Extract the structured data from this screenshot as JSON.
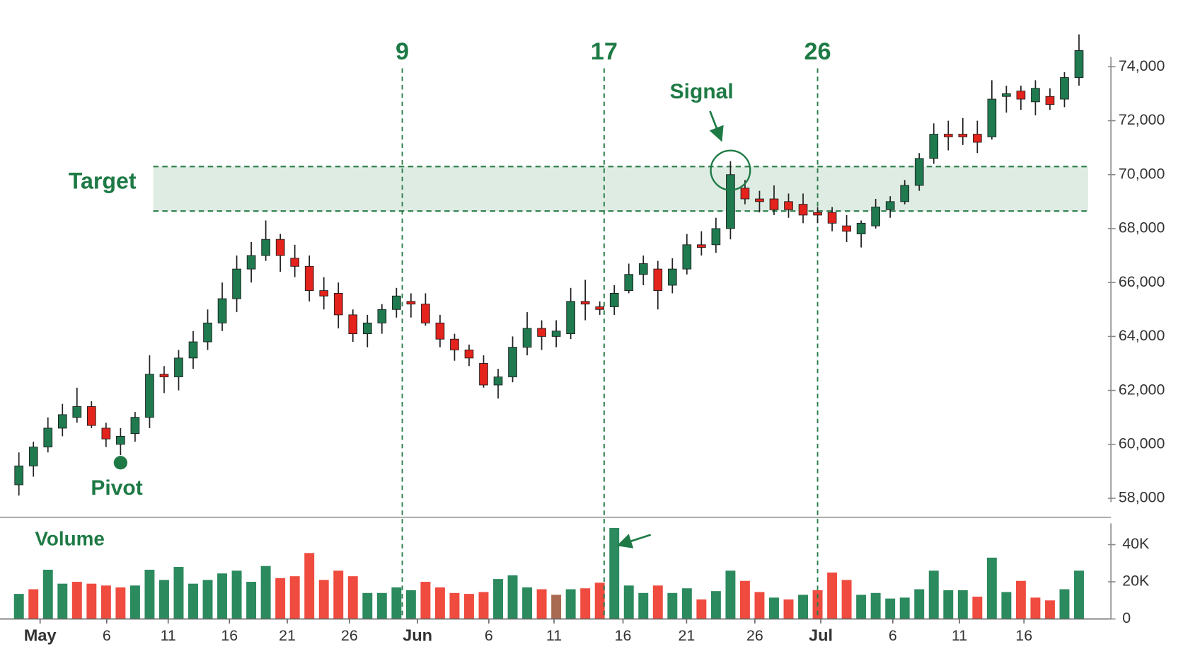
{
  "chart_data": [
    {
      "type": "candlestick",
      "x": [
        0,
        1,
        2,
        3,
        4,
        5,
        6,
        7,
        8,
        9,
        10,
        11,
        12,
        13,
        14,
        15,
        16,
        17,
        18,
        19,
        20,
        21,
        22,
        23,
        24,
        25,
        26,
        27,
        28,
        29,
        30,
        31,
        32,
        33,
        34,
        35,
        36,
        37,
        38,
        39,
        40,
        41,
        42,
        43,
        44,
        45,
        46,
        47,
        48,
        49,
        50,
        51,
        52,
        53,
        54,
        55,
        56,
        57,
        58,
        59,
        60,
        61,
        62,
        63,
        64,
        65,
        66,
        67,
        68,
        69,
        70,
        71,
        72,
        73
      ],
      "open": [
        58500,
        59200,
        59900,
        60600,
        61000,
        61400,
        60600,
        60000,
        60400,
        61000,
        62600,
        62500,
        63200,
        63800,
        64500,
        65400,
        66500,
        67000,
        67600,
        66900,
        66600,
        65700,
        65600,
        64800,
        64100,
        64500,
        65000,
        65300,
        65200,
        64500,
        63900,
        63500,
        63000,
        62200,
        62500,
        63600,
        64300,
        64000,
        64100,
        65300,
        65100,
        65100,
        65700,
        66300,
        66500,
        65900,
        66500,
        67400,
        67400,
        68000,
        69500,
        69100,
        69100,
        69000,
        68900,
        68600,
        68600,
        68100,
        67800,
        68100,
        68700,
        69000,
        69600,
        70600,
        71500,
        71500,
        71500,
        71400,
        72900,
        73100,
        72700,
        72900,
        72800,
        73600
      ],
      "high": [
        59700,
        60100,
        61000,
        61500,
        62100,
        61600,
        60800,
        60600,
        61200,
        63300,
        62900,
        63500,
        64200,
        65000,
        66000,
        67000,
        67500,
        68300,
        67800,
        67400,
        67000,
        66200,
        66000,
        65000,
        64800,
        65200,
        65800,
        65600,
        65600,
        64800,
        64100,
        63700,
        63300,
        62800,
        64000,
        64900,
        64600,
        64600,
        65800,
        66100,
        65300,
        65900,
        66700,
        67000,
        66800,
        66900,
        67800,
        67900,
        68400,
        70500,
        69800,
        69400,
        69600,
        69300,
        69300,
        68800,
        68800,
        68500,
        68300,
        69100,
        69200,
        69800,
        70800,
        71900,
        72000,
        72100,
        72000,
        73500,
        73300,
        73300,
        73500,
        73200,
        73800,
        75200
      ],
      "low": [
        58100,
        58800,
        59700,
        60300,
        60800,
        60600,
        59900,
        59600,
        60100,
        60600,
        61900,
        62000,
        62800,
        63500,
        64200,
        64900,
        66000,
        66800,
        66400,
        66200,
        65300,
        65000,
        64300,
        63800,
        63600,
        64100,
        64700,
        64700,
        64400,
        63600,
        63100,
        62900,
        62100,
        61700,
        62300,
        63300,
        63500,
        63600,
        63900,
        64600,
        64800,
        64800,
        65600,
        65900,
        65000,
        65600,
        66300,
        67000,
        67100,
        67600,
        68900,
        68600,
        68500,
        68400,
        68200,
        68200,
        67900,
        67500,
        67300,
        68000,
        68400,
        68900,
        69400,
        70400,
        70900,
        71100,
        70800,
        71300,
        72300,
        72400,
        72200,
        72400,
        72500,
        73300
      ],
      "close": [
        59200,
        59900,
        60600,
        61100,
        61400,
        60700,
        60200,
        60300,
        61000,
        62600,
        62500,
        63200,
        63800,
        64500,
        65400,
        66500,
        67000,
        67600,
        67000,
        66600,
        65700,
        65500,
        64800,
        64100,
        64500,
        65000,
        65500,
        65200,
        64500,
        63900,
        63500,
        63200,
        62200,
        62500,
        63600,
        64300,
        64000,
        64200,
        65300,
        65200,
        65000,
        65600,
        66300,
        66700,
        65700,
        66500,
        67400,
        67300,
        68000,
        70000,
        69100,
        69000,
        68700,
        68700,
        68500,
        68500,
        68200,
        67900,
        68200,
        68800,
        69000,
        69600,
        70600,
        71500,
        71400,
        71400,
        71200,
        72800,
        73000,
        72800,
        73200,
        72600,
        73600,
        74600
      ],
      "up_color": "#1f7a4f",
      "down_color": "#e3231c",
      "xlim": [
        -1.3,
        75.2
      ],
      "ylim": [
        57350,
        75350
      ],
      "yticks": [
        {
          "value": 58000,
          "label": "58,000"
        },
        {
          "value": 60000,
          "label": "60,000"
        },
        {
          "value": 62000,
          "label": "62,000"
        },
        {
          "value": 64000,
          "label": "64,000"
        },
        {
          "value": 66000,
          "label": "66,000"
        },
        {
          "value": 68000,
          "label": "68,000"
        },
        {
          "value": 70000,
          "label": "70,000"
        },
        {
          "value": 72000,
          "label": "72,000"
        },
        {
          "value": 74000,
          "label": "74,000"
        }
      ],
      "target_zone": {
        "label": "Target",
        "range": [
          68650,
          70300
        ],
        "color": "#2a7d4a"
      },
      "vlines": [
        {
          "x": 26.4,
          "label": "9"
        },
        {
          "x": 40.3,
          "label": "17"
        },
        {
          "x": 55.0,
          "label": "26"
        }
      ],
      "annotations": {
        "pivot": "Pivot",
        "signal": "Signal"
      }
    },
    {
      "type": "bar",
      "title": "Volume",
      "x": [
        0,
        1,
        2,
        3,
        4,
        5,
        6,
        7,
        8,
        9,
        10,
        11,
        12,
        13,
        14,
        15,
        16,
        17,
        18,
        19,
        20,
        21,
        22,
        23,
        24,
        25,
        26,
        27,
        28,
        29,
        30,
        31,
        32,
        33,
        34,
        35,
        36,
        37,
        38,
        39,
        40,
        41,
        42,
        43,
        44,
        45,
        46,
        47,
        48,
        49,
        50,
        51,
        52,
        53,
        54,
        55,
        56,
        57,
        58,
        59,
        60,
        61,
        62,
        63,
        64,
        65,
        66,
        67,
        68,
        69,
        70,
        71,
        72,
        73
      ],
      "values": [
        13500,
        16000,
        26500,
        19000,
        20000,
        19000,
        18000,
        17000,
        18000,
        26500,
        21000,
        28000,
        19000,
        21000,
        24500,
        26000,
        20000,
        28500,
        22000,
        23000,
        35500,
        21000,
        26000,
        23000,
        14000,
        14000,
        17000,
        15500,
        20000,
        17000,
        14000,
        13500,
        14500,
        21500,
        23500,
        17000,
        16000,
        13000,
        16000,
        16500,
        19500,
        49000,
        18000,
        14000,
        18000,
        14000,
        16500,
        10500,
        15000,
        26000,
        20500,
        14500,
        11500,
        10500,
        13000,
        15500,
        25000,
        21000,
        13000,
        14000,
        11000,
        11500,
        16000,
        26000,
        15500,
        15500,
        12000,
        33000,
        14500,
        20500,
        11500,
        10000,
        16000,
        26000
      ],
      "colors": [
        "#2b8a5e",
        "#ef4b3f",
        "#2b8a5e",
        "#2b8a5e",
        "#ef4b3f",
        "#ef4b3f",
        "#ef4b3f",
        "#ef4b3f",
        "#2b8a5e",
        "#2b8a5e",
        "#2b8a5e",
        "#2b8a5e",
        "#2b8a5e",
        "#2b8a5e",
        "#2b8a5e",
        "#2b8a5e",
        "#2b8a5e",
        "#2b8a5e",
        "#ef4b3f",
        "#ef4b3f",
        "#ef4b3f",
        "#ef4b3f",
        "#ef4b3f",
        "#ef4b3f",
        "#2b8a5e",
        "#2b8a5e",
        "#2b8a5e",
        "#2b8a5e",
        "#ef4b3f",
        "#ef4b3f",
        "#ef4b3f",
        "#ef4b3f",
        "#ef4b3f",
        "#2b8a5e",
        "#2b8a5e",
        "#2b8a5e",
        "#ef4b3f",
        "#a86a50",
        "#2b8a5e",
        "#ef4b3f",
        "#ef4b3f",
        "#2b8a5e",
        "#2b8a5e",
        "#2b8a5e",
        "#ef4b3f",
        "#2b8a5e",
        "#2b8a5e",
        "#ef4b3f",
        "#2b8a5e",
        "#2b8a5e",
        "#ef4b3f",
        "#ef4b3f",
        "#2b8a5e",
        "#ef4b3f",
        "#2b8a5e",
        "#ef4b3f",
        "#ef4b3f",
        "#ef4b3f",
        "#2b8a5e",
        "#2b8a5e",
        "#2b8a5e",
        "#2b8a5e",
        "#2b8a5e",
        "#2b8a5e",
        "#2b8a5e",
        "#2b8a5e",
        "#ef4b3f",
        "#2b8a5e",
        "#2b8a5e",
        "#ef4b3f",
        "#ef4b3f",
        "#ef4b3f",
        "#2b8a5e",
        "#2b8a5e"
      ],
      "xlim": [
        -1.3,
        75.2
      ],
      "ylim": [
        0,
        54700
      ],
      "yticks": [
        0,
        {
          "value": 20000,
          "label": "20K"
        },
        {
          "value": 40000,
          "label": "40K"
        }
      ],
      "xticks": [
        {
          "value": 1.46,
          "label": "May"
        },
        {
          "value": 6.05,
          "label": "6"
        },
        {
          "value": 10.28,
          "label": "11"
        },
        {
          "value": 14.5,
          "label": "16"
        },
        {
          "value": 18.48,
          "label": "21"
        },
        {
          "value": 22.76,
          "label": "26"
        },
        {
          "value": 27.45,
          "label": "Jun"
        },
        {
          "value": 32.36,
          "label": "6"
        },
        {
          "value": 36.85,
          "label": "11"
        },
        {
          "value": 41.6,
          "label": "16"
        },
        {
          "value": 45.98,
          "label": "21"
        },
        {
          "value": 50.68,
          "label": "26"
        },
        {
          "value": 55.22,
          "label": "Jul"
        },
        {
          "value": 60.18,
          "label": "6"
        },
        {
          "value": 64.77,
          "label": "11"
        },
        {
          "value": 69.21,
          "label": "16"
        }
      ]
    }
  ]
}
